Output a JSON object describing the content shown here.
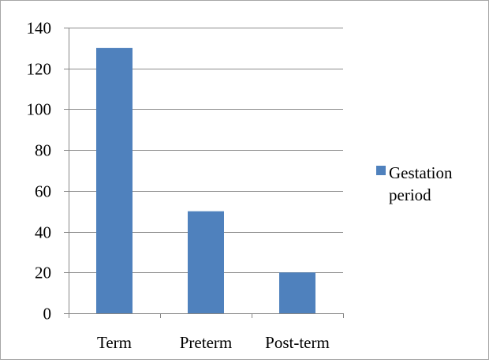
{
  "chart_data": {
    "type": "bar",
    "categories": [
      "Term",
      "Preterm",
      "Post-term"
    ],
    "series": [
      {
        "name": "Gestation period",
        "values": [
          130,
          50,
          20
        ]
      }
    ],
    "ylim": [
      0,
      140
    ],
    "yticks": [
      "0",
      "20",
      "40",
      "60",
      "80",
      "100",
      "120",
      "140"
    ],
    "grid": true,
    "legend_position": "right",
    "colors": {
      "bar": "#4f81bd",
      "grid": "#8c8c8c",
      "axis": "#868686"
    }
  },
  "legend": {
    "line1": "Gestation",
    "line2": "period"
  }
}
